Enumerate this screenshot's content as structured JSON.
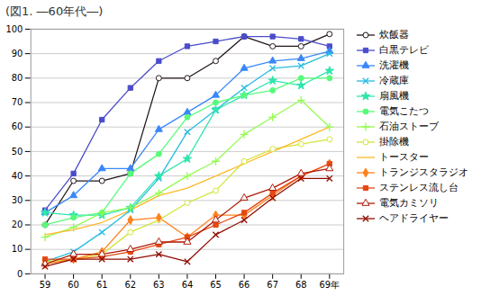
{
  "chart_data": {
    "type": "line",
    "title": "(図1. ―60年代―)",
    "x": [
      59,
      60,
      61,
      62,
      63,
      64,
      65,
      66,
      67,
      68,
      69
    ],
    "xlim": [
      58.5,
      69.5
    ],
    "xticks": [
      59,
      60,
      61,
      62,
      63,
      64,
      65,
      66,
      67,
      68,
      {
        "value": 69,
        "label": "69年"
      }
    ],
    "ylim": [
      0,
      100
    ],
    "yticks": [
      0,
      10,
      20,
      30,
      40,
      50,
      60,
      70,
      80,
      90,
      100
    ],
    "grid": true,
    "legend": "right",
    "series": [
      {
        "name": "炊飯器",
        "marker": "circle-open",
        "values": [
          20,
          38,
          38,
          41,
          80,
          80,
          87,
          97,
          93,
          93,
          98
        ]
      },
      {
        "name": "白黒テレビ",
        "marker": "square",
        "values": [
          26,
          41,
          63,
          76,
          87,
          93,
          95,
          97,
          97,
          96,
          93
        ]
      },
      {
        "name": "洗濯機",
        "marker": "triangle",
        "values": [
          25,
          32,
          43,
          43,
          59,
          66,
          73,
          84,
          87,
          88,
          91
        ]
      },
      {
        "name": "冷蔵庫",
        "marker": "x",
        "values": [
          5,
          9,
          17,
          26,
          39,
          58,
          67,
          76,
          84,
          85,
          90
        ]
      },
      {
        "name": "扇風機",
        "marker": "star",
        "values": [
          25,
          24,
          24,
          27,
          40,
          47,
          67,
          73,
          79,
          77,
          83
        ]
      },
      {
        "name": "電気こたつ",
        "marker": "circle",
        "values": [
          20,
          23,
          25,
          41,
          49,
          64,
          70,
          73,
          75,
          80,
          80
        ]
      },
      {
        "name": "石油ストーブ",
        "marker": "plus",
        "values": [
          15,
          19,
          25,
          27,
          33,
          40,
          46,
          57,
          64,
          71,
          60
        ]
      },
      {
        "name": "掛除機",
        "marker": "circle-open",
        "values": [
          5,
          6,
          8,
          17,
          22,
          29,
          34,
          46,
          51,
          53,
          55
        ]
      },
      {
        "name": "トースター",
        "marker": "none",
        "values": [
          16,
          18,
          21,
          26,
          32,
          35,
          40,
          45,
          50,
          55,
          60
        ]
      },
      {
        "name": "トランジスタラジオ",
        "marker": "diamond",
        "values": [
          4,
          6,
          9,
          22,
          23,
          15,
          24,
          24,
          32,
          40,
          45
        ]
      },
      {
        "name": "ステンレス流し台",
        "marker": "square",
        "values": [
          6,
          6,
          7,
          9,
          12,
          15,
          20,
          25,
          33,
          40,
          45
        ]
      },
      {
        "name": "電気カミソリ",
        "marker": "triangle-open",
        "values": [
          4,
          8,
          8,
          10,
          13,
          13,
          22,
          31,
          35,
          41,
          43
        ]
      },
      {
        "name": "ヘアドライヤー",
        "marker": "x",
        "values": [
          3,
          6,
          6,
          6,
          8,
          5,
          16,
          22,
          31,
          39,
          39
        ]
      }
    ]
  }
}
